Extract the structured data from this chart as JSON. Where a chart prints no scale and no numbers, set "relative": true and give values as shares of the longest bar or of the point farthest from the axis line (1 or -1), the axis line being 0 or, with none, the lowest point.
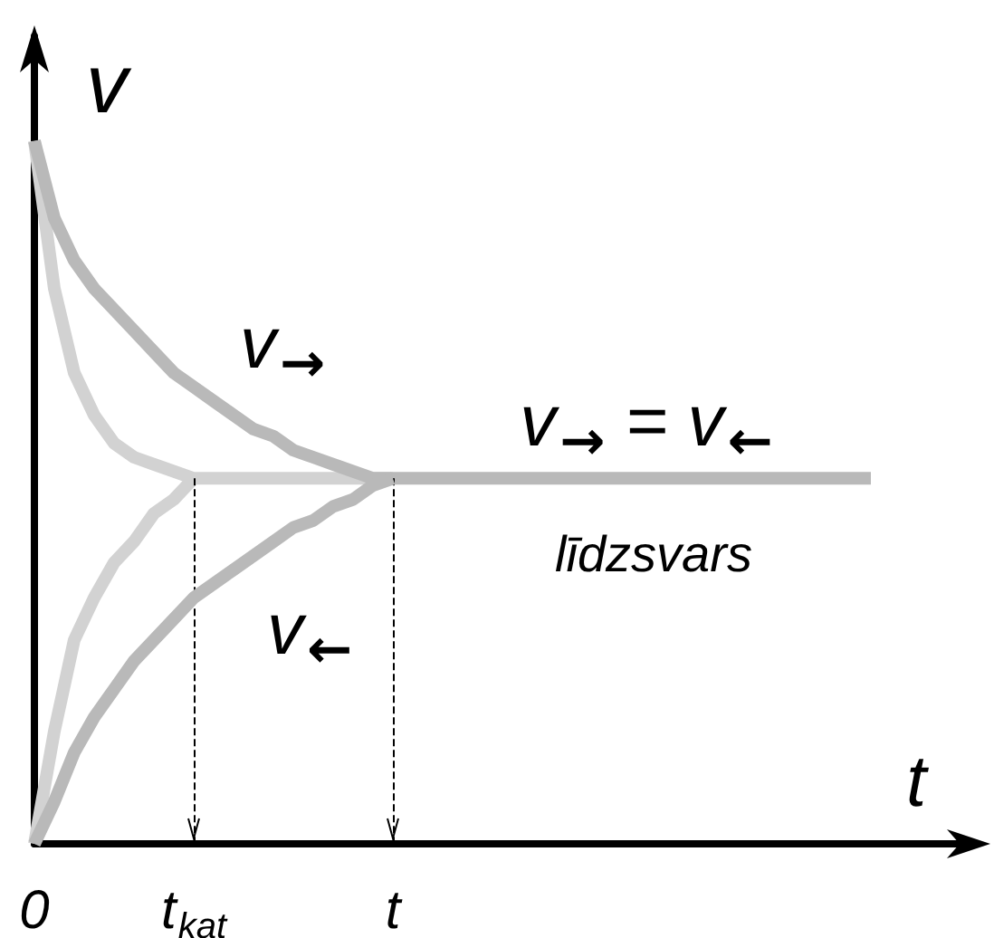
{
  "chart_data": {
    "type": "line",
    "relative": true,
    "xlabel": "t",
    "ylabel": "v",
    "categories": [
      "0",
      null,
      null,
      null,
      null,
      null,
      null,
      null,
      "t$_{kat}$",
      null,
      null,
      null,
      null,
      null,
      null,
      null,
      null,
      null,
      "t",
      null,
      null,
      null,
      null,
      null,
      null,
      null,
      null,
      null,
      null,
      null,
      null,
      null,
      null,
      null,
      null,
      null,
      null,
      null,
      null,
      null,
      null,
      null,
      null
    ],
    "series": [
      {
        "color": "#d2d2d2",
        "values": [
          1.0,
          0.79,
          0.67,
          0.61,
          0.57,
          0.55,
          0.54,
          0.53,
          0.52,
          0.52,
          0.52,
          0.52,
          0.52,
          0.52,
          0.52,
          0.52,
          0.52,
          0.52,
          0.52,
          null,
          null,
          null,
          null,
          null,
          null,
          null,
          null,
          null,
          null,
          null,
          null,
          null,
          null,
          null,
          null,
          null,
          null,
          null,
          null,
          null,
          null,
          null,
          null
        ]
      },
      {
        "color": "#d2d2d2",
        "values": [
          0,
          0.16,
          0.29,
          0.35,
          0.4,
          0.43,
          0.47,
          0.49,
          0.52,
          null,
          null,
          null,
          null,
          null,
          null,
          null,
          null,
          null,
          null,
          null,
          null,
          null,
          null,
          null,
          null,
          null,
          null,
          null,
          null,
          null,
          null,
          null,
          null,
          null,
          null,
          null,
          null,
          null,
          null,
          null,
          null,
          null,
          null
        ]
      },
      {
        "color": "#b9b9b9",
        "values": [
          1.0,
          0.89,
          0.83,
          0.79,
          0.76,
          0.73,
          0.7,
          0.67,
          0.65,
          0.63,
          0.61,
          0.59,
          0.58,
          0.56,
          0.55,
          0.54,
          0.53,
          0.52,
          0.52,
          0.52,
          0.52,
          0.52,
          0.52,
          0.52,
          0.52,
          0.52,
          0.52,
          0.52,
          0.52,
          0.52,
          0.52,
          0.52,
          0.52,
          0.52,
          0.52,
          0.52,
          0.52,
          0.52,
          0.52,
          0.52,
          0.52,
          0.52,
          0.52
        ]
      },
      {
        "color": "#b9b9b9",
        "values": [
          0,
          0.06,
          0.13,
          0.18,
          0.22,
          0.26,
          0.29,
          0.32,
          0.35,
          0.37,
          0.39,
          0.41,
          0.43,
          0.45,
          0.46,
          0.48,
          0.49,
          0.51,
          0.52,
          null,
          null,
          null,
          null,
          null,
          null,
          null,
          null,
          null,
          null,
          null,
          null,
          null,
          null,
          null,
          null,
          null,
          null,
          null,
          null,
          null,
          null,
          null,
          null
        ]
      }
    ],
    "ref_lines": [
      {
        "axis": "x",
        "value": "t$_{kat}$",
        "line_style": "dashed",
        "color": "#000000"
      },
      {
        "axis": "x",
        "value": "t",
        "line_style": "dashed",
        "color": "#000000"
      }
    ],
    "annotations": [
      "v→",
      "v←",
      "v→ = v←",
      "līdzsvars"
    ],
    "marker": "none",
    "line_style": "solid"
  }
}
